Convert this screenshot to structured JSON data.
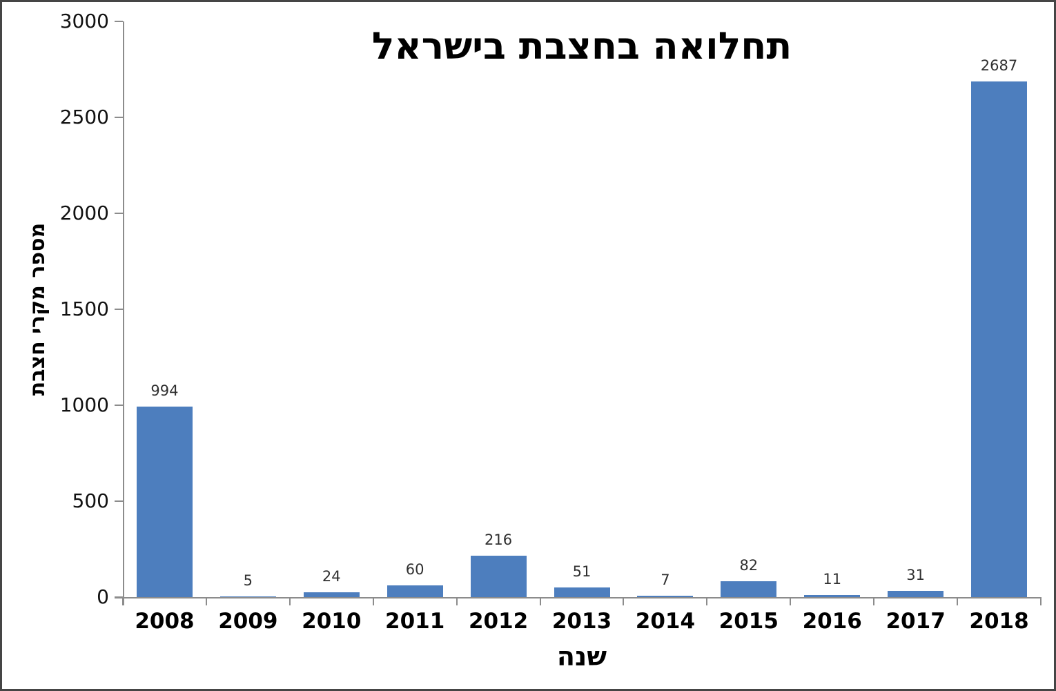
{
  "chart_data": {
    "type": "bar",
    "title": "תחלואה בחצבת בישראל",
    "xlabel": "שנה",
    "ylabel": "מספר מקרי חצבת",
    "categories": [
      "2008",
      "2009",
      "2010",
      "2011",
      "2012",
      "2013",
      "2014",
      "2015",
      "2016",
      "2017",
      "2018"
    ],
    "values": [
      994,
      5,
      24,
      60,
      216,
      51,
      7,
      82,
      11,
      31,
      2687
    ],
    "data_labels": [
      994,
      5,
      24,
      60,
      216,
      51,
      7,
      82,
      11,
      31,
      2687
    ],
    "ylim": [
      0,
      3000
    ],
    "yticks": [
      0,
      500,
      1000,
      1500,
      2000,
      2500,
      3000
    ],
    "grid": false,
    "legend": "none",
    "bar_color": "#4d7ebe",
    "axis_color": "#8c8c8c",
    "text_color": "#000000",
    "value_label_color": "#303030"
  }
}
